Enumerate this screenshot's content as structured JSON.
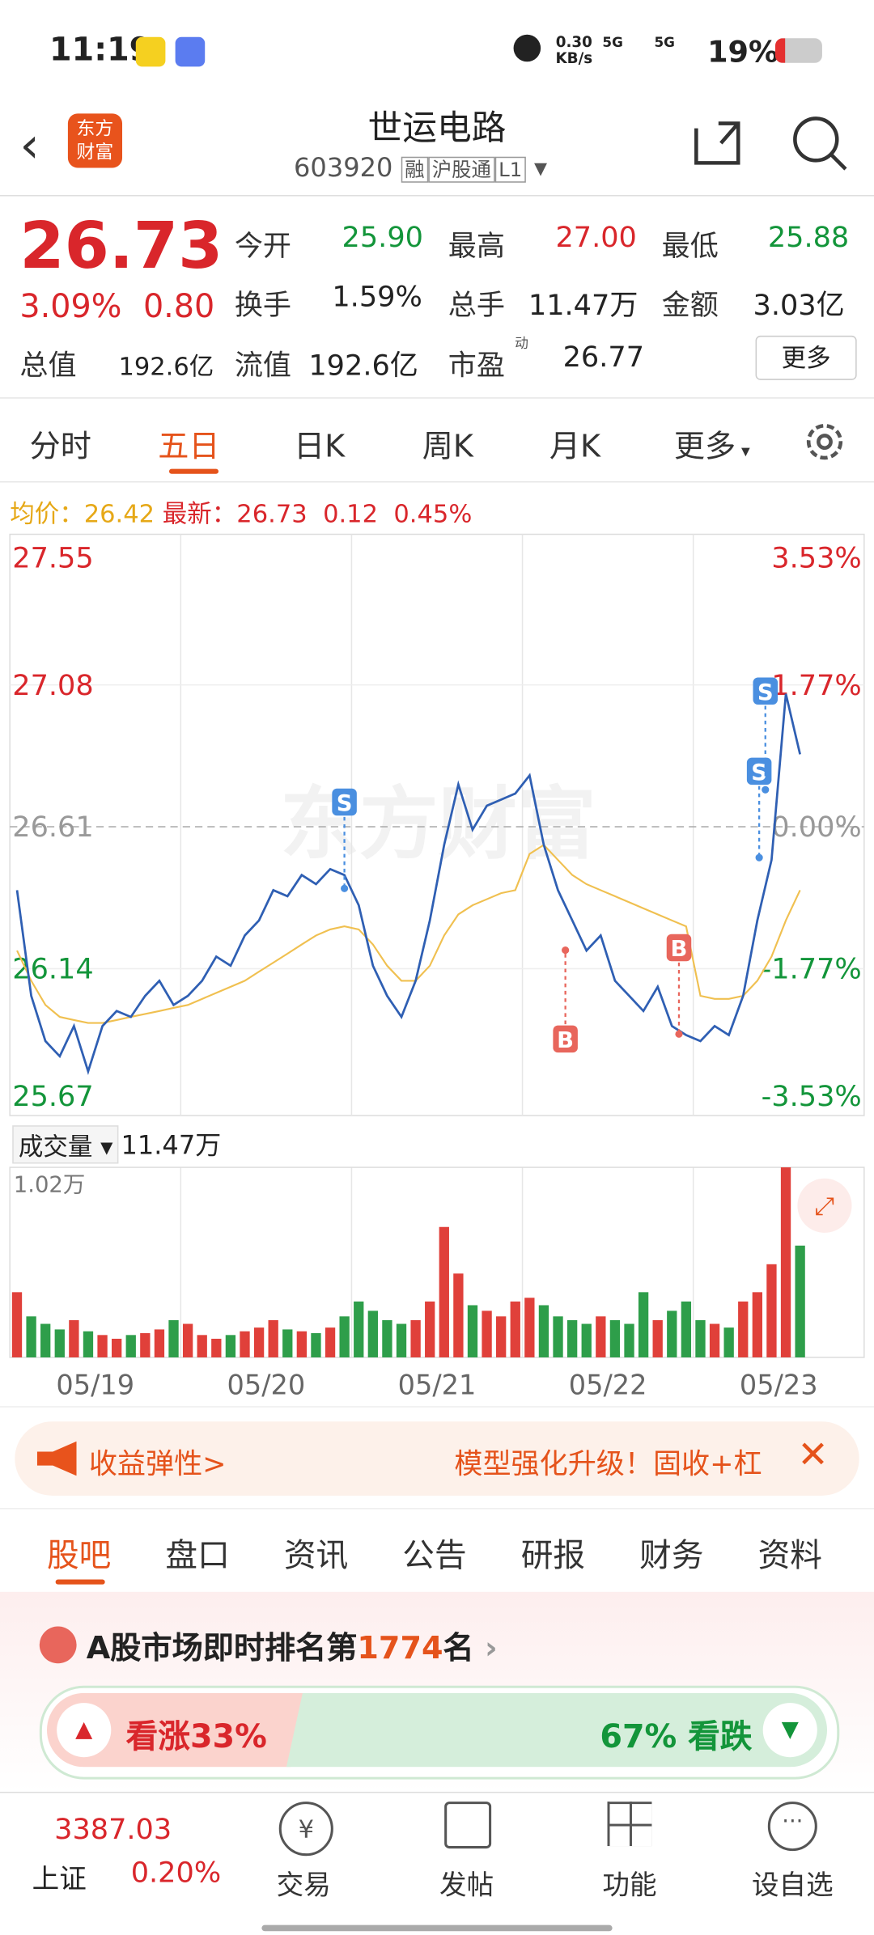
{
  "status": {
    "time": "11:19",
    "speed": "0.30",
    "speed_unit": "KB/s",
    "net1": "5G",
    "net2": "5G",
    "battery": "19%"
  },
  "header": {
    "title": "世运电路",
    "code": "603920",
    "tags": [
      "融",
      "沪股通",
      "L1"
    ],
    "logo": "东方财富"
  },
  "quote": {
    "price": "26.73",
    "change_pct": "3.09%",
    "change": "0.80",
    "fields": [
      {
        "label": "今开",
        "value": "25.90"
      },
      {
        "label": "最高",
        "value": "27.00"
      },
      {
        "label": "最低",
        "value": "25.88"
      },
      {
        "label": "换手",
        "value": "1.59%"
      },
      {
        "label": "总手",
        "value": "11.47万"
      },
      {
        "label": "金额",
        "value": "3.03亿"
      },
      {
        "label": "总值",
        "value": "192.6亿"
      },
      {
        "label": "流值",
        "value": "192.6亿"
      },
      {
        "label": "市盈",
        "value": "26.77",
        "sup": "动"
      }
    ],
    "more": "更多"
  },
  "tabs": [
    "分时",
    "五日",
    "日K",
    "周K",
    "月K",
    "更多"
  ],
  "legend": {
    "avg_label": "均价：",
    "avg": "26.42",
    "last_label": "最新：",
    "last": "26.73",
    "diff": "0.12",
    "diff_pct": "0.45%"
  },
  "chart_data": {
    "type": "line",
    "watermark": "东方财富",
    "ylim": [
      25.67,
      27.55
    ],
    "yticks": [
      27.55,
      27.08,
      26.61,
      26.14,
      25.67
    ],
    "y2ticks": [
      "3.53%",
      "1.77%",
      "0.00%",
      "-1.77%",
      "-3.53%"
    ],
    "xlim": [
      0,
      60
    ],
    "signals": [
      "S",
      "B",
      "B",
      "S",
      "S"
    ],
    "series": [
      {
        "name": "price",
        "color": "#2f5fb3",
        "values": [
          26.4,
          26.05,
          25.9,
          25.85,
          25.95,
          25.8,
          25.95,
          26.0,
          25.98,
          26.05,
          26.1,
          26.02,
          26.05,
          26.1,
          26.18,
          26.15,
          26.25,
          26.3,
          26.4,
          26.38,
          26.45,
          26.42,
          26.47,
          26.45,
          26.35,
          26.15,
          26.05,
          25.98,
          26.1,
          26.3,
          26.55,
          26.75,
          26.6,
          26.68,
          26.7,
          26.72,
          26.78,
          26.55,
          26.4,
          26.3,
          26.2,
          26.25,
          26.1,
          26.05,
          26.0,
          26.08,
          25.95,
          25.92,
          25.9,
          25.95,
          25.92,
          26.05,
          26.3,
          26.5,
          27.05,
          26.85
        ]
      },
      {
        "name": "avg",
        "color": "#f0c050",
        "values": [
          26.2,
          26.1,
          26.02,
          25.98,
          25.97,
          25.96,
          25.96,
          25.97,
          25.98,
          25.99,
          26.0,
          26.01,
          26.02,
          26.04,
          26.06,
          26.08,
          26.1,
          26.13,
          26.16,
          26.19,
          26.22,
          26.25,
          26.27,
          26.28,
          26.27,
          26.22,
          26.15,
          26.1,
          26.1,
          26.15,
          26.25,
          26.32,
          26.35,
          26.37,
          26.39,
          26.4,
          26.52,
          26.55,
          26.5,
          26.45,
          26.42,
          26.4,
          26.38,
          26.36,
          26.34,
          26.32,
          26.3,
          26.28,
          26.05,
          26.04,
          26.04,
          26.05,
          26.1,
          26.18,
          26.3,
          26.4
        ]
      }
    ]
  },
  "volume": {
    "label": "成交量",
    "total": "11.47万",
    "max_label": "1.02万",
    "ylim": [
      0,
      1.02
    ],
    "values": [
      0.35,
      0.22,
      0.18,
      0.15,
      0.2,
      0.14,
      0.12,
      0.1,
      0.12,
      0.13,
      0.15,
      0.2,
      0.18,
      0.12,
      0.1,
      0.12,
      0.14,
      0.16,
      0.2,
      0.15,
      0.14,
      0.13,
      0.16,
      0.22,
      0.3,
      0.25,
      0.2,
      0.18,
      0.2,
      0.3,
      0.7,
      0.45,
      0.28,
      0.25,
      0.22,
      0.3,
      0.32,
      0.28,
      0.22,
      0.2,
      0.18,
      0.22,
      0.2,
      0.18,
      0.35,
      0.2,
      0.25,
      0.3,
      0.2,
      0.18,
      0.16,
      0.3,
      0.35,
      0.5,
      1.02,
      0.6
    ]
  },
  "dates": [
    "05/19",
    "05/20",
    "05/21",
    "05/22",
    "05/23"
  ],
  "banner": {
    "left": "收益弹性>",
    "right": "模型强化升级！固收+杠"
  },
  "tabs2": [
    "股吧",
    "盘口",
    "资讯",
    "公告",
    "研报",
    "财务",
    "资料"
  ],
  "rank": {
    "pre": "A股市场即时排名第",
    "num": "1774",
    "post": "名"
  },
  "vote": {
    "up_label": "看涨",
    "up": "33%",
    "down": "67%",
    "down_label": "看跌"
  },
  "bottom": {
    "index_value": "3387.03",
    "index_name": "上证",
    "index_change": "0.20%",
    "items": [
      "交易",
      "发帖",
      "功能",
      "设自选"
    ]
  }
}
